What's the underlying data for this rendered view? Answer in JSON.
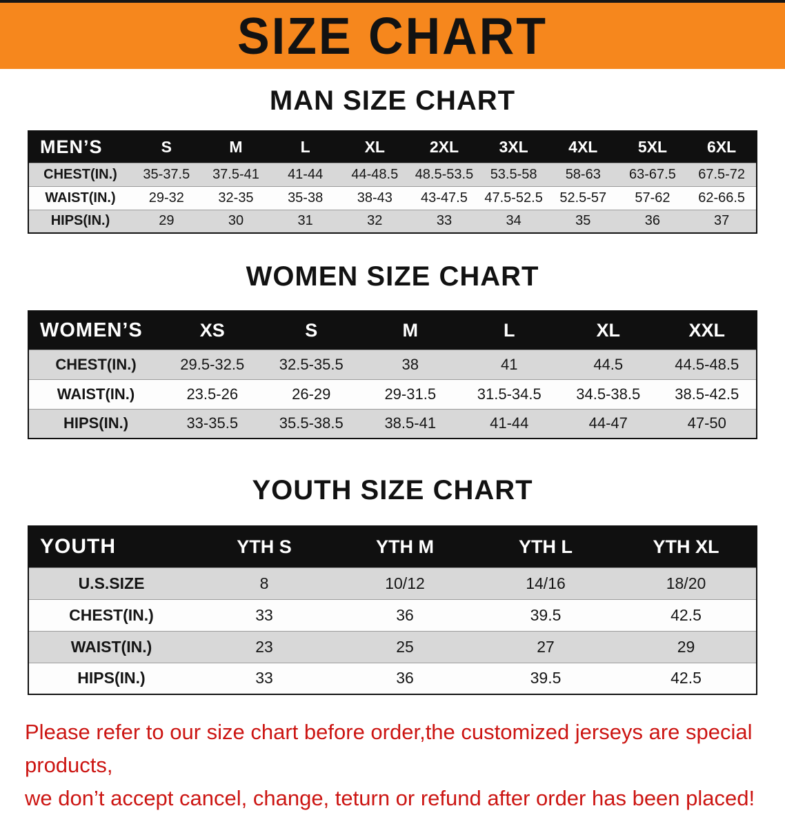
{
  "banner": {
    "title": "SIZE CHART",
    "bg_color": "#f6871d",
    "text_color": "#121212"
  },
  "chart_data": [
    {
      "type": "table",
      "title": "MAN SIZE CHART",
      "label": "MEN’S",
      "columns": [
        "S",
        "M",
        "L",
        "XL",
        "2XL",
        "3XL",
        "4XL",
        "5XL",
        "6XL"
      ],
      "rows": [
        {
          "label": "CHEST(IN.)",
          "values": [
            "35-37.5",
            "37.5-41",
            "41-44",
            "44-48.5",
            "48.5-53.5",
            "53.5-58",
            "58-63",
            "63-67.5",
            "67.5-72"
          ]
        },
        {
          "label": "WAIST(IN.)",
          "values": [
            "29-32",
            "32-35",
            "35-38",
            "38-43",
            "43-47.5",
            "47.5-52.5",
            "52.5-57",
            "57-62",
            "62-66.5"
          ]
        },
        {
          "label": "HIPS(IN.)",
          "values": [
            "29",
            "30",
            "31",
            "32",
            "33",
            "34",
            "35",
            "36",
            "37"
          ]
        }
      ]
    },
    {
      "type": "table",
      "title": "WOMEN SIZE CHART",
      "label": "WOMEN’S",
      "columns": [
        "XS",
        "S",
        "M",
        "L",
        "XL",
        "XXL"
      ],
      "rows": [
        {
          "label": "CHEST(IN.)",
          "values": [
            "29.5-32.5",
            "32.5-35.5",
            "38",
            "41",
            "44.5",
            "44.5-48.5"
          ]
        },
        {
          "label": "WAIST(IN.)",
          "values": [
            "23.5-26",
            "26-29",
            "29-31.5",
            "31.5-34.5",
            "34.5-38.5",
            "38.5-42.5"
          ]
        },
        {
          "label": "HIPS(IN.)",
          "values": [
            "33-35.5",
            "35.5-38.5",
            "38.5-41",
            "41-44",
            "44-47",
            "47-50"
          ]
        }
      ]
    },
    {
      "type": "table",
      "title": "YOUTH SIZE CHART",
      "label": "YOUTH",
      "columns": [
        "YTH S",
        "YTH M",
        "YTH L",
        "YTH XL"
      ],
      "rows": [
        {
          "label": "U.S.SIZE",
          "values": [
            "8",
            "10/12",
            "14/16",
            "18/20"
          ]
        },
        {
          "label": "CHEST(IN.)",
          "values": [
            "33",
            "36",
            "39.5",
            "42.5"
          ]
        },
        {
          "label": "WAIST(IN.)",
          "values": [
            "23",
            "25",
            "27",
            "29"
          ]
        },
        {
          "label": "HIPS(IN.)",
          "values": [
            "33",
            "36",
            "39.5",
            "42.5"
          ]
        }
      ]
    }
  ],
  "footer": {
    "line1": "Please refer to our size chart before order,the customized jerseys are special products,",
    "line2": "we don’t accept cancel, change, teturn or refund after order has been placed!",
    "color": "#cc1512"
  }
}
